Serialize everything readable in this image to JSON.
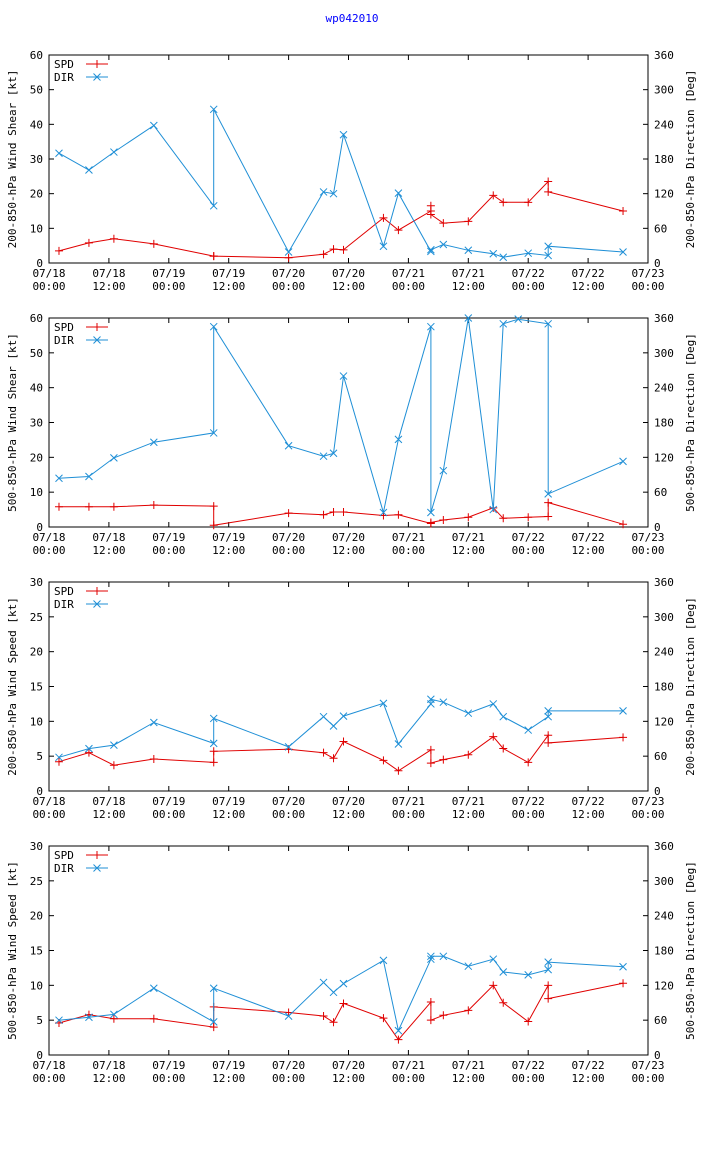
{
  "title": "wp042010",
  "colors": {
    "spd": "#e00000",
    "dir": "#1f8fd6",
    "title": "#0000ff"
  },
  "chart_data": [
    {
      "type": "line",
      "title": "wp042010",
      "ylabel": "200-850-hPa Wind Shear [kt]",
      "y2label": "200-850-hPa Direction [Deg]",
      "xlim": [
        0,
        120
      ],
      "ylim": [
        0,
        60
      ],
      "yticks": [
        0,
        10,
        20,
        30,
        40,
        50,
        60
      ],
      "y2lim": [
        0,
        360
      ],
      "y2ticks": [
        0,
        60,
        120,
        180,
        240,
        300,
        360
      ],
      "x_ticks": [
        0,
        12,
        24,
        36,
        48,
        60,
        72,
        84,
        96,
        108,
        120
      ],
      "x_tick_labels": [
        [
          "07/18",
          "00:00"
        ],
        [
          "07/18",
          "12:00"
        ],
        [
          "07/19",
          "00:00"
        ],
        [
          "07/19",
          "12:00"
        ],
        [
          "07/20",
          "00:00"
        ],
        [
          "07/20",
          "12:00"
        ],
        [
          "07/21",
          "00:00"
        ],
        [
          "07/21",
          "12:00"
        ],
        [
          "07/22",
          "00:00"
        ],
        [
          "07/22",
          "12:00"
        ],
        [
          "07/23",
          "00:00"
        ]
      ],
      "legend": [
        "SPD",
        "DIR"
      ],
      "series": [
        {
          "name": "SPD",
          "axis": "left",
          "x": [
            2,
            8,
            13,
            21,
            33,
            33,
            48,
            55,
            57,
            59,
            67,
            70,
            76.5,
            76.5,
            76.5,
            79,
            84,
            89,
            91,
            96,
            100,
            100,
            115
          ],
          "y": [
            3.5,
            5.8,
            7,
            5.5,
            2,
            2,
            1.5,
            2.5,
            4,
            3.8,
            13,
            9.5,
            15,
            16.5,
            14,
            11.5,
            12,
            19.5,
            17.5,
            17.5,
            23.5,
            20.5,
            15
          ]
        },
        {
          "name": "DIR",
          "axis": "right",
          "x": [
            2,
            8,
            13,
            21,
            33,
            33,
            48,
            55,
            57,
            59,
            67,
            70,
            76.5,
            76.5,
            79,
            84,
            89,
            91,
            96,
            100,
            100,
            115
          ],
          "y": [
            190,
            161,
            192,
            238,
            99,
            266,
            19,
            123,
            120,
            222,
            29,
            121,
            20,
            23,
            32,
            22,
            16,
            10,
            17,
            13,
            29,
            19
          ]
        }
      ]
    },
    {
      "type": "line",
      "ylabel": "500-850-hPa Wind Shear [kt]",
      "y2label": "500-850-hPa Direction [Deg]",
      "xlim": [
        0,
        120
      ],
      "ylim": [
        0,
        60
      ],
      "yticks": [
        0,
        10,
        20,
        30,
        40,
        50,
        60
      ],
      "y2lim": [
        0,
        360
      ],
      "y2ticks": [
        0,
        60,
        120,
        180,
        240,
        300,
        360
      ],
      "x_ticks": [
        0,
        12,
        24,
        36,
        48,
        60,
        72,
        84,
        96,
        108,
        120
      ],
      "x_tick_labels": [
        [
          "07/18",
          "00:00"
        ],
        [
          "07/18",
          "12:00"
        ],
        [
          "07/19",
          "00:00"
        ],
        [
          "07/19",
          "12:00"
        ],
        [
          "07/20",
          "00:00"
        ],
        [
          "07/20",
          "12:00"
        ],
        [
          "07/21",
          "00:00"
        ],
        [
          "07/21",
          "12:00"
        ],
        [
          "07/22",
          "00:00"
        ],
        [
          "07/22",
          "12:00"
        ],
        [
          "07/23",
          "00:00"
        ]
      ],
      "legend": [
        "SPD",
        "DIR"
      ],
      "series": [
        {
          "name": "SPD",
          "axis": "left",
          "x": [
            2,
            8,
            13,
            21,
            33,
            33,
            48,
            55,
            57,
            59,
            67,
            70,
            76.5,
            76.5,
            79,
            84,
            89,
            91,
            96,
            100,
            100,
            115
          ],
          "y": [
            5.8,
            5.8,
            5.8,
            6.3,
            6,
            0.5,
            4,
            3.5,
            4.3,
            4.3,
            3.3,
            3.5,
            1,
            1.3,
            2,
            2.8,
            5.5,
            2.5,
            2.8,
            3,
            7,
            0.8
          ]
        },
        {
          "name": "DIR",
          "axis": "right",
          "x": [
            2,
            8,
            13,
            21,
            33,
            33,
            48,
            55,
            57,
            59,
            67,
            70,
            76.5,
            76.5,
            79,
            84,
            89,
            91,
            94,
            100,
            100,
            115
          ],
          "y": [
            84,
            87,
            119,
            146,
            162,
            345,
            140,
            122,
            127,
            260,
            25,
            151,
            345,
            25,
            97,
            360,
            30,
            350,
            358,
            350,
            57,
            113
          ]
        }
      ]
    },
    {
      "type": "line",
      "ylabel": "200-850-hPa Wind Speed [kt]",
      "y2label": "200-850-hPa Direction [Deg]",
      "xlim": [
        0,
        120
      ],
      "ylim": [
        0,
        30
      ],
      "yticks": [
        0,
        5,
        10,
        15,
        20,
        25,
        30
      ],
      "y2lim": [
        0,
        360
      ],
      "y2ticks": [
        0,
        60,
        120,
        180,
        240,
        300,
        360
      ],
      "x_ticks": [
        0,
        12,
        24,
        36,
        48,
        60,
        72,
        84,
        96,
        108,
        120
      ],
      "x_tick_labels": [
        [
          "07/18",
          "00:00"
        ],
        [
          "07/18",
          "12:00"
        ],
        [
          "07/19",
          "00:00"
        ],
        [
          "07/19",
          "12:00"
        ],
        [
          "07/20",
          "00:00"
        ],
        [
          "07/20",
          "12:00"
        ],
        [
          "07/21",
          "00:00"
        ],
        [
          "07/21",
          "12:00"
        ],
        [
          "07/22",
          "00:00"
        ],
        [
          "07/22",
          "12:00"
        ],
        [
          "07/23",
          "00:00"
        ]
      ],
      "legend": [
        "SPD",
        "DIR"
      ],
      "series": [
        {
          "name": "SPD",
          "axis": "left",
          "x": [
            2,
            8,
            13,
            21,
            33,
            33,
            48,
            55,
            57,
            59,
            67,
            70,
            76.5,
            76.5,
            79,
            84,
            89,
            91,
            96,
            100,
            100,
            115
          ],
          "y": [
            4.2,
            5.5,
            3.7,
            4.6,
            4.1,
            5.7,
            6,
            5.5,
            4.7,
            7.1,
            4.4,
            2.9,
            5.9,
            4,
            4.5,
            5.2,
            7.8,
            6.1,
            4.1,
            8,
            6.9,
            7.7
          ]
        },
        {
          "name": "DIR",
          "axis": "right",
          "x": [
            2,
            8,
            13,
            21,
            33,
            33,
            48,
            55,
            57,
            59,
            67,
            70,
            76.5,
            76.5,
            79,
            84,
            89,
            91,
            96,
            100,
            100,
            115
          ],
          "y": [
            58,
            73,
            79,
            118,
            82,
            125,
            76,
            128,
            112,
            129,
            151,
            81,
            150,
            158,
            153,
            134,
            150,
            128,
            105,
            128,
            138,
            138
          ]
        }
      ]
    },
    {
      "type": "line",
      "ylabel": "500-850-hPa Wind Speed [kt]",
      "y2label": "500-850-hPa Direction [Deg]",
      "xlim": [
        0,
        120
      ],
      "ylim": [
        0,
        30
      ],
      "yticks": [
        0,
        5,
        10,
        15,
        20,
        25,
        30
      ],
      "y2lim": [
        0,
        360
      ],
      "y2ticks": [
        0,
        60,
        120,
        180,
        240,
        300,
        360
      ],
      "x_ticks": [
        0,
        12,
        24,
        36,
        48,
        60,
        72,
        84,
        96,
        108,
        120
      ],
      "x_tick_labels": [
        [
          "07/18",
          "00:00"
        ],
        [
          "07/18",
          "12:00"
        ],
        [
          "07/19",
          "00:00"
        ],
        [
          "07/19",
          "12:00"
        ],
        [
          "07/20",
          "00:00"
        ],
        [
          "07/20",
          "12:00"
        ],
        [
          "07/21",
          "00:00"
        ],
        [
          "07/21",
          "12:00"
        ],
        [
          "07/22",
          "00:00"
        ],
        [
          "07/22",
          "12:00"
        ],
        [
          "07/23",
          "00:00"
        ]
      ],
      "legend": [
        "SPD",
        "DIR"
      ],
      "series": [
        {
          "name": "SPD",
          "axis": "left",
          "x": [
            2,
            8,
            13,
            21,
            33,
            33,
            48,
            55,
            57,
            59,
            67,
            70,
            76.5,
            76.5,
            79,
            84,
            89,
            91,
            96,
            100,
            100,
            115
          ],
          "y": [
            4.6,
            5.8,
            5.2,
            5.2,
            4,
            6.9,
            6.1,
            5.6,
            4.7,
            7.4,
            5.3,
            2.2,
            7.6,
            5,
            5.7,
            6.4,
            10,
            7.5,
            4.8,
            10,
            8.1,
            10.3
          ]
        },
        {
          "name": "DIR",
          "axis": "right",
          "x": [
            2,
            8,
            13,
            21,
            33,
            33,
            48,
            55,
            57,
            59,
            67,
            70,
            76.5,
            76.5,
            79,
            84,
            89,
            91,
            96,
            100,
            100,
            115
          ],
          "y": [
            60,
            65,
            70,
            115,
            57,
            115,
            67,
            125,
            108,
            123,
            163,
            42,
            165,
            170,
            170,
            153,
            165,
            143,
            138,
            147,
            160,
            152
          ]
        }
      ]
    }
  ]
}
